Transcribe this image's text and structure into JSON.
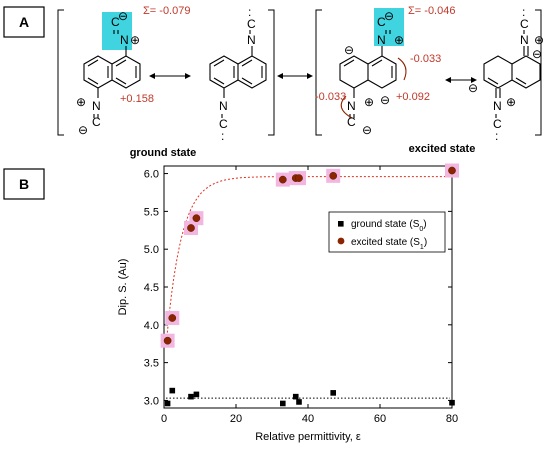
{
  "panel_a": {
    "label": "A",
    "ground_state_label": "ground state",
    "excited_state_label": "excited state",
    "charges": {
      "ground_sum": "Σ= -0.079",
      "ground_ring": "+0.158",
      "excited_sum": "Σ= -0.046",
      "excited_top": "-0.033",
      "excited_left": "-0.033",
      "excited_right": "+0.092"
    },
    "atoms": {
      "N": "N",
      "C": "C",
      "plus": "⊕",
      "minus": "⊖",
      "colon": ":"
    },
    "highlight_color": "#3fd4e0"
  },
  "panel_b": {
    "label": "B",
    "chart_data": {
      "type": "scatter",
      "xlabel": "Relative permittivity, ε",
      "ylabel": "Dip. S. (Au)",
      "xlim": [
        0,
        80
      ],
      "ylim": [
        2.9,
        6.1
      ],
      "xticks": [
        0,
        20,
        40,
        60,
        80
      ],
      "yticks": [
        3.0,
        3.5,
        4.0,
        4.5,
        5.0,
        5.5,
        6.0
      ],
      "grid": false,
      "legend_position": "right",
      "series": [
        {
          "name": "ground state (S0)",
          "name_base": "ground state (S",
          "name_sub": "0",
          "name_end": ")",
          "marker": "square",
          "color": "#000000",
          "fit": "horizontal dotted line at 3.03",
          "fit_color": "#000000",
          "points": [
            [
              1.0,
              2.96
            ],
            [
              2.3,
              3.13
            ],
            [
              7.5,
              3.05
            ],
            [
              9.0,
              3.08
            ],
            [
              33.0,
              2.96
            ],
            [
              36.6,
              3.05
            ],
            [
              37.5,
              2.98
            ],
            [
              47.0,
              3.1
            ],
            [
              80.0,
              2.97
            ]
          ]
        },
        {
          "name": "excited state (S1)",
          "name_base": "excited state (S",
          "name_sub": "1",
          "name_end": ")",
          "marker": "circle",
          "color": "#8b2500",
          "fit": "saturating dotted curve",
          "fit_color": "#e03020",
          "points": [
            [
              1.0,
              3.79
            ],
            [
              2.3,
              4.09
            ],
            [
              7.5,
              5.28
            ],
            [
              9.0,
              5.41
            ],
            [
              33.0,
              5.92
            ],
            [
              36.6,
              5.94
            ],
            [
              37.5,
              5.94
            ],
            [
              47.0,
              5.97
            ],
            [
              80.0,
              6.04
            ]
          ]
        }
      ],
      "highlight_color": "#f2b6e0"
    }
  }
}
